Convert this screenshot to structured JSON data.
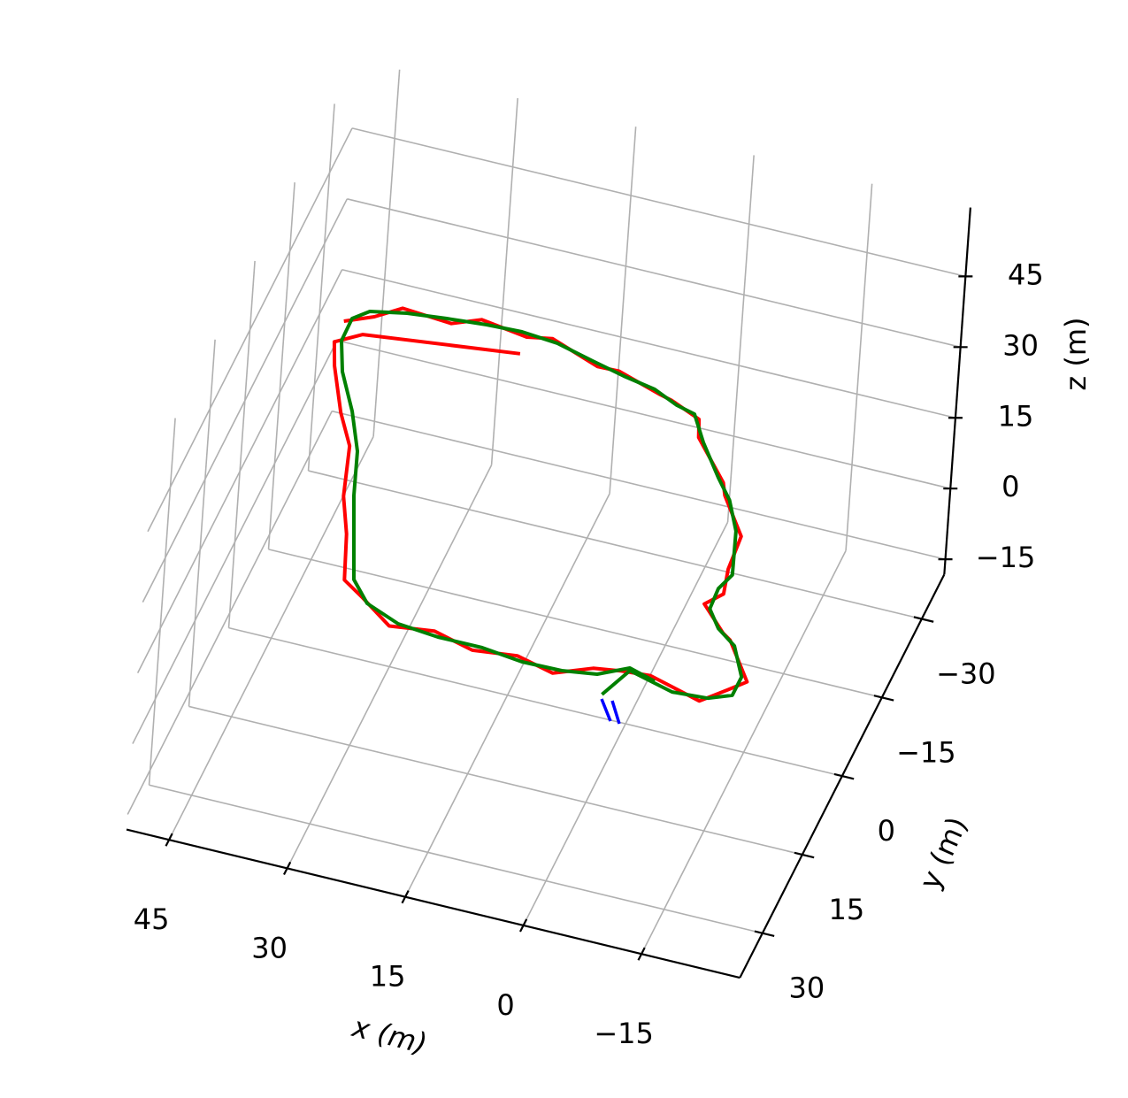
{
  "chart_data": {
    "type": "line3d",
    "xlabel": "x (m)",
    "ylabel": "y (m)",
    "zlabel": "z (m)",
    "xlim": [
      -27.5,
      50.4
    ],
    "ylim": [
      -38.5,
      38.5
    ],
    "zlim": [
      -18.2,
      59.6
    ],
    "xticks": [
      {
        "value": -15,
        "label": "−15"
      },
      0,
      15,
      30,
      45
    ],
    "yticks": [
      {
        "value": -30,
        "label": "−30"
      },
      {
        "value": -15,
        "label": "−15"
      },
      0,
      15,
      30
    ],
    "zticks": [
      {
        "value": -15,
        "label": "−15"
      },
      0,
      15,
      30,
      45
    ],
    "grid": true,
    "series": [
      {
        "color": "#ff0000",
        "x": [
          26.6,
          45.5,
          48.3,
          46.9,
          43.5,
          40.6,
          38.4,
          35.9,
          33.5,
          30.4,
          25.8,
          20.4,
          15.0,
          9.6,
          4.6,
          0.3,
          -3.1,
          -6.6,
          -13.6,
          -16.2,
          -17.9,
          -13.6,
          -12.4,
          -8.6,
          -10.2,
          -9.3,
          -8.9,
          -4.7,
          -3.8,
          1.6,
          2.6,
          6.8,
          8.4,
          14.4,
          17.1,
          23.8,
          26.8,
          32.9,
          36.1,
          42.5,
          45.2,
          48.4
        ],
        "y": [
          -35.6,
          -32.4,
          -30.0,
          -25.9,
          -18.2,
          -12.9,
          -4.1,
          2.2,
          10.1,
          12.4,
          16.1,
          15.1,
          16.8,
          15.9,
          17.4,
          14.9,
          14.2,
          13.8,
          16.1,
          13.0,
          10.9,
          4.5,
          3.6,
          -0.6,
          -3.1,
          -7.5,
          -13.6,
          -19.9,
          -22.0,
          -28.7,
          -31.8,
          -33.9,
          -34.4,
          -36.7,
          -36.6,
          -39.5,
          -38.7,
          -39.8,
          -37.9,
          -38.5,
          -35.9,
          -33.9
        ],
        "z": [
          10,
          10,
          10,
          10,
          10,
          10,
          10,
          10,
          10,
          10,
          10,
          10,
          10,
          10,
          10,
          10,
          10,
          10,
          10,
          10,
          10,
          10,
          10,
          10,
          10,
          10,
          10,
          10,
          10,
          10,
          10,
          10,
          10,
          10,
          10,
          10,
          10,
          10,
          10,
          10,
          10,
          10
        ]
      },
      {
        "color": "#008000",
        "x": [
          -2.2,
          -4.0,
          -10.0,
          -14.4,
          -17.0,
          -17.0,
          -14.4,
          -11.6,
          -9.5,
          -9.3,
          -10.1,
          -8.0,
          -5.5,
          -2.95,
          0.78,
          3.4,
          5.91,
          9.33,
          13.59,
          17.96,
          22.98,
          27.64,
          32.05,
          36.91,
          41.72,
          46.03,
          47.62,
          47.56,
          45.68,
          42.29,
          39.41,
          37.28,
          34.74,
          32.46,
          29.59,
          24.92,
          19.65,
          14.04,
          8.72,
          3.71,
          -0.5,
          -3.85,
          -7.41
        ],
        "y": [
          19.0,
          13.8,
          15.7,
          15.3,
          13.8,
          10.3,
          5.3,
          3.0,
          0.0,
          -3.8,
          -6.7,
          -14.3,
          -19.3,
          -22.64,
          -28.04,
          -32.5,
          -33.27,
          -35.07,
          -36.06,
          -37.34,
          -38.9,
          -39.4,
          -39.15,
          -38.57,
          -37.84,
          -36.61,
          -34.68,
          -30.48,
          -25.25,
          -18.88,
          -12.32,
          -4.65,
          2.87,
          9.64,
          13.16,
          15.35,
          15.97,
          15.96,
          16.73,
          16.6,
          15.75,
          13.35,
          14.59
        ],
        "z": [
          10,
          10,
          10,
          10,
          10,
          10,
          10,
          10,
          10,
          10,
          10,
          10,
          10,
          10,
          10,
          10,
          10,
          10,
          10,
          10,
          10,
          10,
          10,
          10,
          10,
          10,
          10,
          10,
          10,
          10,
          10,
          10,
          10,
          10,
          10,
          10,
          10,
          10,
          10,
          10,
          10,
          10,
          10
        ]
      },
      {
        "color": "#0000ff",
        "x": [
          -2.42,
          -4.69,
          null,
          -3.72,
          -5.84
        ],
        "y": [
          19.78,
          23.18,
          null,
          19.64,
          23.27
        ],
        "z": [
          10,
          10,
          null,
          10,
          10
        ]
      }
    ]
  }
}
